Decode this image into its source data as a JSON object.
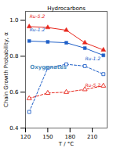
{
  "chart_data": {
    "type": "line",
    "title": "Hydrocarbons",
    "xlabel": "T / °C",
    "ylabel": "Chain Growth Probability, α",
    "x": [
      125,
      150,
      175,
      200,
      225
    ],
    "series": [
      {
        "color": "#e8281e",
        "marker": "triangle",
        "line_style": "solid",
        "values": [
          0.965,
          0.96,
          0.945,
          0.875,
          0.835
        ]
      },
      {
        "color": "#2060c8",
        "marker": "square",
        "line_style": "solid",
        "values": [
          0.885,
          0.88,
          0.875,
          0.845,
          0.805
        ]
      },
      {
        "color": "#2060c8",
        "marker": "square-open",
        "line_style": "dashed",
        "values": [
          0.49,
          0.735,
          0.755,
          0.745,
          0.7
        ]
      },
      {
        "color": "#e8281e",
        "marker": "triangle-open",
        "line_style": "dashed",
        "values": [
          0.565,
          0.595,
          0.6,
          0.615,
          0.635
        ]
      }
    ],
    "annotations": [
      {
        "text": "Oxygenates",
        "color": "#5090c0"
      },
      {
        "text": "Ru-5.2",
        "color": "#e8281e"
      },
      {
        "text": "Ru-1.2",
        "color": "#2060c8"
      },
      {
        "text": "Ru-1.2",
        "color": "#2060c8"
      },
      {
        "text": "Ru-5.2",
        "color": "#e8281e"
      }
    ],
    "xlim": [
      120,
      230
    ],
    "ylim": [
      0.4,
      1.05
    ],
    "xticks": [
      120,
      150,
      180,
      210
    ],
    "yticks": [
      0.4,
      0.6,
      0.8,
      {
        "value": 1,
        "label": "1.0"
      }
    ],
    "grid": false
  }
}
